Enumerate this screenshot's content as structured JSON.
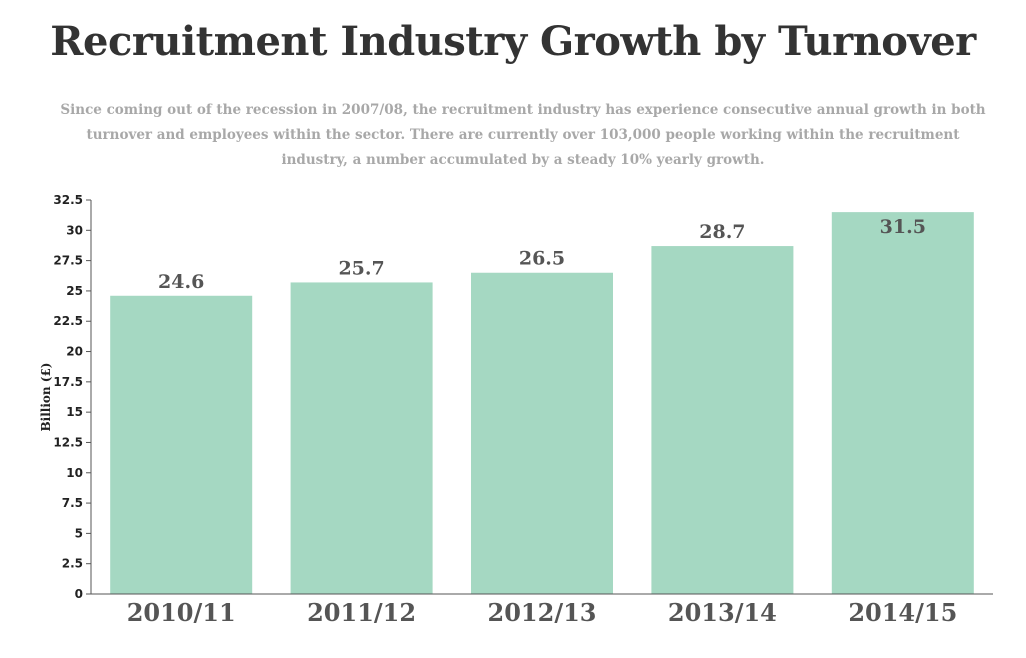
{
  "header": {
    "title": "Recruitment Industry Growth by Turnover",
    "subtitle": "Since coming out of the recession in 2007/08, the recruitment industry has experience consecutive annual growth in both turnover and employees within the sector. There are currently over 103,000 people working within the recruitment industry, a number accumulated by a steady 10% yearly growth."
  },
  "colors": {
    "bar": "#a5d8c2",
    "axis": "#555555",
    "label": "#555555"
  },
  "chart_data": {
    "type": "bar",
    "title": "Recruitment Industry Growth by Turnover",
    "xlabel": "",
    "ylabel": "Billion (£)",
    "categories": [
      "2010/11",
      "2011/12",
      "2012/13",
      "2013/14",
      "2014/15"
    ],
    "values": [
      24.6,
      25.7,
      26.5,
      28.7,
      31.5
    ],
    "data_labels": [
      "24.6",
      "25.7",
      "26.5",
      "28.7",
      "31.5"
    ],
    "ylim": [
      0,
      32.5
    ],
    "yticks": [
      0,
      2.5,
      5,
      7.5,
      10,
      12.5,
      15,
      17.5,
      20,
      22.5,
      25,
      27.5,
      30,
      32.5
    ],
    "ytick_labels": [
      "0",
      "2.5",
      "5",
      "7.5",
      "10",
      "12.5",
      "15",
      "17.5",
      "20",
      "22.5",
      "25",
      "27.5",
      "30",
      "32.5"
    ],
    "grid": false,
    "legend": "none"
  }
}
